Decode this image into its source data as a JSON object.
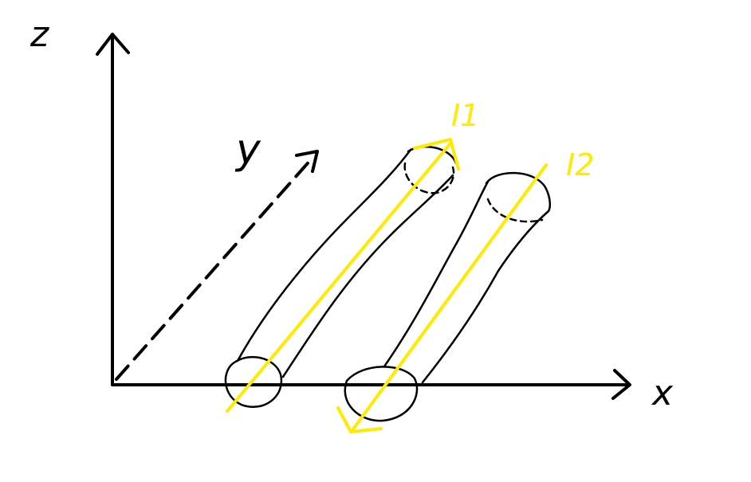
{
  "axes": {
    "z_label": "z",
    "y_label": "y",
    "x_label": "x"
  },
  "currents": [
    {
      "label": "I1",
      "direction": "up"
    },
    {
      "label": "I2",
      "direction": "down"
    }
  ],
  "colors": {
    "ink": "#000000",
    "current": "#ffea00"
  }
}
